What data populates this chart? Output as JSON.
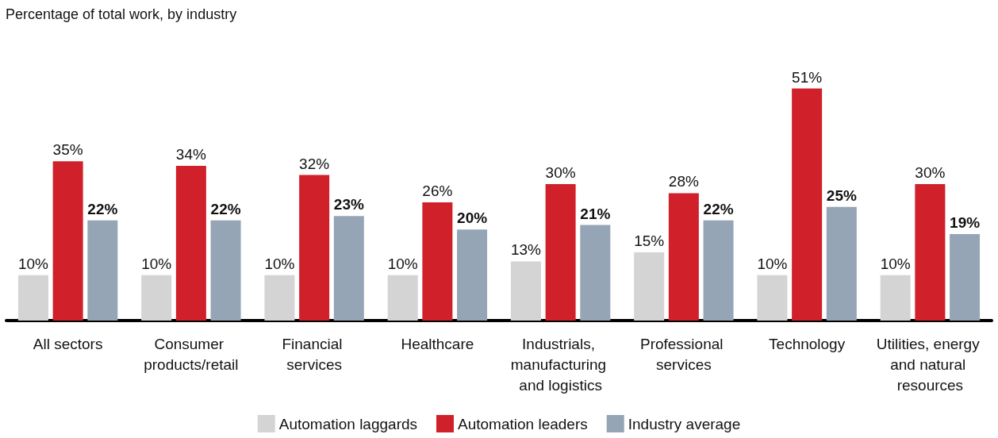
{
  "chart_data": {
    "type": "bar",
    "title": "Percentage of total work, by industry",
    "categories": [
      "All sectors",
      "Consumer products/retail",
      "Financial services",
      "Healthcare",
      "Industrials, manufacturing and logistics",
      "Professional services",
      "Technology",
      "Utilities, energy and natural resources"
    ],
    "series": [
      {
        "name": "Automation laggards",
        "color": "#d4d4d4",
        "values": [
          10,
          10,
          10,
          10,
          13,
          15,
          10,
          10
        ],
        "value_labels": [
          "10%",
          "10%",
          "10%",
          "10%",
          "13%",
          "15%",
          "10%",
          "10%"
        ]
      },
      {
        "name": "Automation leaders",
        "color": "#d0202a",
        "values": [
          35,
          34,
          32,
          26,
          30,
          28,
          51,
          30
        ],
        "value_labels": [
          "35%",
          "34%",
          "32%",
          "26%",
          "30%",
          "28%",
          "51%",
          "30%"
        ]
      },
      {
        "name": "Industry average",
        "color": "#95a5b5",
        "values": [
          22,
          22,
          23,
          20,
          21,
          22,
          25,
          19
        ],
        "value_labels": [
          "22%",
          "22%",
          "23%",
          "20%",
          "21%",
          "22%",
          "25%",
          "19%"
        ]
      }
    ],
    "legend": "bottom",
    "grid": false
  }
}
